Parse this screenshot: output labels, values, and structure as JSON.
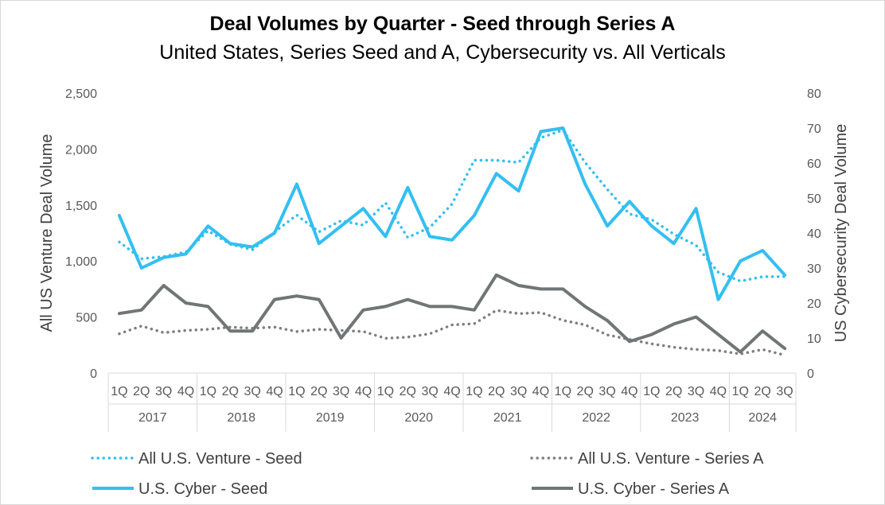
{
  "chart_data": {
    "type": "line",
    "title": "Deal Volumes by Quarter - Seed through Series A",
    "subtitle": "United States, Series Seed and A, Cybersecurity vs. All Verticals",
    "ylabel_left": "All US Venture Deal Volume",
    "ylabel_right": "US Cybersecurity Deal Volume",
    "ylim_left": [
      0,
      2500
    ],
    "yticks_left": [
      "0",
      "500",
      "1,000",
      "1,500",
      "2,000",
      "2,500"
    ],
    "ylim_right": [
      0,
      80
    ],
    "yticks_right": [
      "0",
      "10",
      "20",
      "30",
      "40",
      "50",
      "60",
      "70",
      "80"
    ],
    "grid": false,
    "legend_position": "bottom",
    "years": [
      "2017",
      "2018",
      "2019",
      "2020",
      "2021",
      "2022",
      "2023",
      "2024"
    ],
    "quarters": [
      "1Q",
      "2Q",
      "3Q",
      "4Q",
      "1Q",
      "2Q",
      "3Q",
      "4Q",
      "1Q",
      "2Q",
      "3Q",
      "4Q",
      "1Q",
      "2Q",
      "3Q",
      "4Q",
      "1Q",
      "2Q",
      "3Q",
      "4Q",
      "1Q",
      "2Q",
      "3Q",
      "4Q",
      "1Q",
      "2Q",
      "3Q",
      "4Q",
      "1Q",
      "2Q",
      "3Q"
    ],
    "series": [
      {
        "name": "All U.S. Venture - Seed",
        "axis": "left",
        "style": "dotted",
        "color": "#33bff0",
        "values": [
          1170,
          1020,
          1040,
          1080,
          1270,
          1150,
          1100,
          1260,
          1410,
          1260,
          1360,
          1320,
          1520,
          1210,
          1300,
          1510,
          1900,
          1900,
          1880,
          2100,
          2170,
          1880,
          1640,
          1420,
          1370,
          1240,
          1140,
          900,
          820,
          860,
          860
        ]
      },
      {
        "name": "All U.S. Venture - Series A",
        "axis": "left",
        "style": "dotted",
        "color": "#7f7f7f",
        "values": [
          350,
          420,
          360,
          380,
          390,
          410,
          400,
          410,
          370,
          390,
          380,
          370,
          310,
          320,
          350,
          430,
          440,
          560,
          530,
          540,
          470,
          430,
          340,
          300,
          260,
          230,
          210,
          200,
          170,
          210,
          160
        ]
      },
      {
        "name": "U.S. Cyber - Seed",
        "axis": "right",
        "style": "solid",
        "color": "#33bff0",
        "values": [
          45,
          30,
          33,
          34,
          42,
          37,
          36,
          40,
          54,
          37,
          42,
          47,
          39,
          53,
          39,
          38,
          45,
          57,
          52,
          69,
          70,
          54,
          42,
          49,
          42,
          37,
          47,
          21,
          32,
          35,
          28
        ]
      },
      {
        "name": "U.S. Cyber - Series A",
        "axis": "right",
        "style": "solid",
        "color": "#707576",
        "values": [
          17,
          18,
          25,
          20,
          19,
          12,
          12,
          21,
          22,
          21,
          10,
          18,
          19,
          21,
          19,
          19,
          18,
          28,
          25,
          24,
          24,
          19,
          15,
          9,
          11,
          14,
          16,
          11,
          6,
          12,
          7
        ]
      }
    ]
  }
}
